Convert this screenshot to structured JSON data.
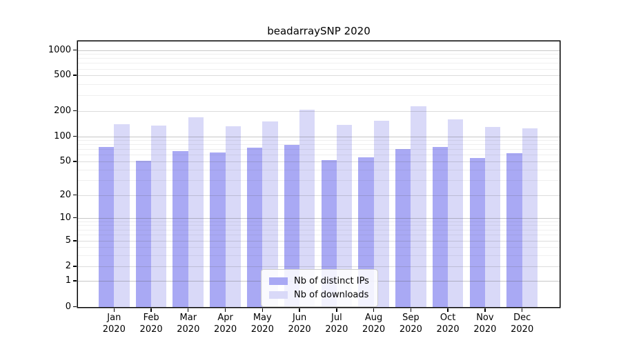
{
  "title": "beadarraySNP 2020",
  "chart_data": {
    "type": "bar",
    "title": "beadarraySNP 2020",
    "months": [
      "Jan",
      "Feb",
      "Mar",
      "Apr",
      "May",
      "Jun",
      "Jul",
      "Aug",
      "Sep",
      "Oct",
      "Nov",
      "Dec"
    ],
    "year_label": "2020",
    "series": [
      {
        "name": "Nb of distinct IPs",
        "color": "#a9a9f4",
        "values": [
          75,
          51,
          67,
          64,
          73,
          79,
          52,
          56,
          70,
          75,
          55,
          63
        ]
      },
      {
        "name": "Nb of downloads",
        "color": "#d9d9f8",
        "values": [
          140,
          134,
          168,
          132,
          150,
          205,
          137,
          152,
          225,
          157,
          130,
          124
        ]
      }
    ],
    "yscale": "symlog",
    "yticks": [
      0,
      1,
      2,
      5,
      10,
      20,
      50,
      100,
      200,
      500,
      1000
    ],
    "ylim": [
      0,
      1300
    ],
    "grid": "on",
    "legend_position": "bottom-center"
  }
}
